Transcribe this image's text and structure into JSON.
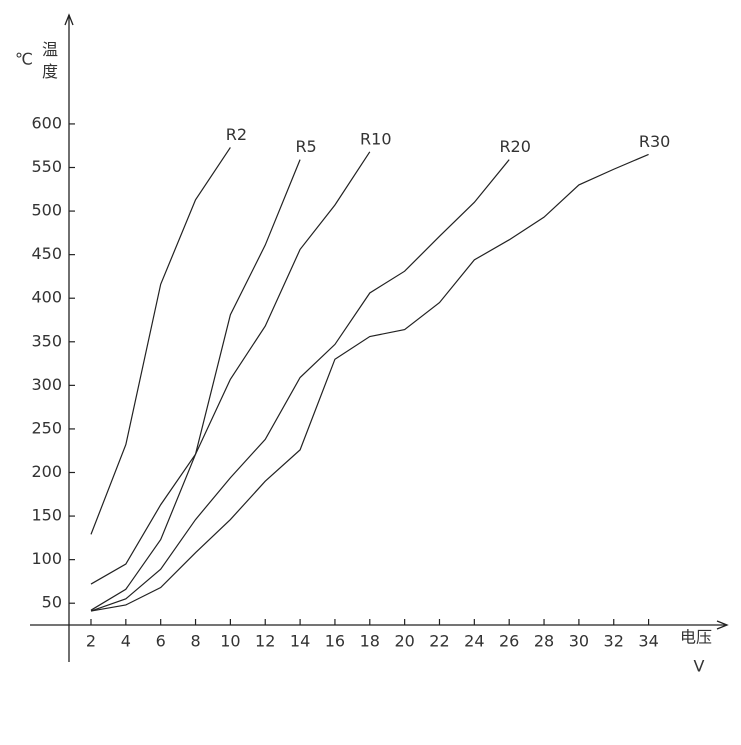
{
  "chart_data": {
    "type": "line",
    "ylabel": "温度",
    "y_unit": "℃",
    "xlabel": "电压",
    "x_unit": "V",
    "xlim": [
      -1.5,
      38.5
    ],
    "ylim": [
      25,
      725
    ],
    "xticks": [
      2,
      4,
      6,
      8,
      10,
      12,
      14,
      16,
      18,
      20,
      22,
      24,
      26,
      28,
      30,
      32,
      34
    ],
    "yticks": [
      50,
      100,
      150,
      200,
      250,
      300,
      350,
      400,
      450,
      500,
      550,
      600
    ],
    "series": [
      {
        "name": "R2",
        "color": "#222222",
        "x": [
          2,
          4,
          6,
          8,
          10
        ],
        "values": [
          129,
          232,
          416,
          513,
          573
        ]
      },
      {
        "name": "R5",
        "color": "#222222",
        "x": [
          2,
          4,
          6,
          8,
          10,
          12,
          14
        ],
        "values": [
          42,
          66,
          123,
          221,
          381,
          461,
          559
        ]
      },
      {
        "name": "R10",
        "color": "#222222",
        "x": [
          2,
          4,
          6,
          8,
          10,
          12,
          14,
          16,
          18
        ],
        "values": [
          72,
          95,
          163,
          221,
          307,
          368,
          456,
          507,
          568
        ]
      },
      {
        "name": "R20",
        "color": "#222222",
        "x": [
          2,
          4,
          6,
          8,
          10,
          12,
          14,
          16,
          18,
          20,
          22,
          24,
          26
        ],
        "values": [
          41,
          55,
          89,
          146,
          194,
          238,
          309,
          347,
          406,
          431,
          471,
          510,
          559
        ]
      },
      {
        "name": "R30",
        "color": "#222222",
        "x": [
          2,
          4,
          6,
          8,
          10,
          12,
          14,
          16,
          18,
          20,
          22,
          24,
          26,
          28,
          30,
          32,
          34
        ],
        "values": [
          41,
          48,
          68,
          108,
          146,
          190,
          226,
          330,
          356,
          364,
          395,
          444,
          467,
          493,
          530,
          548,
          565
        ]
      }
    ]
  }
}
